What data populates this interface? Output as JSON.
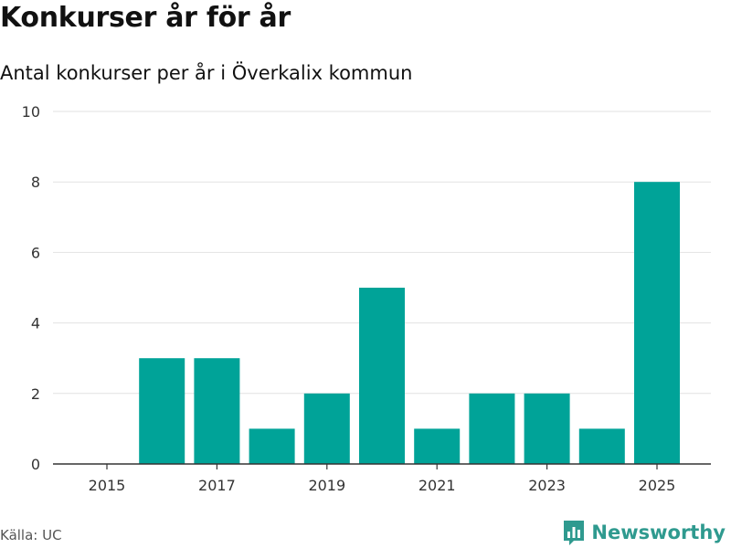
{
  "title": "Konkurser år för år",
  "subtitle": "Antal konkurser per år i Överkalix kommun",
  "source": "Källa: UC",
  "brand": "Newsworthy",
  "colors": {
    "bar": "#00a398",
    "grid": "#e2e2e2",
    "axis": "#333333",
    "brand": "#2f9a8f"
  },
  "chart_data": {
    "type": "bar",
    "title": "Konkurser år för år",
    "subtitle": "Antal konkurser per år i Överkalix kommun",
    "xlabel": "",
    "ylabel": "",
    "categories": [
      2015,
      2016,
      2017,
      2018,
      2019,
      2020,
      2021,
      2022,
      2023,
      2024,
      2025
    ],
    "values": [
      0,
      3,
      3,
      1,
      2,
      5,
      1,
      2,
      2,
      1,
      8
    ],
    "ylim": [
      0,
      10
    ],
    "yticks": [
      0,
      2,
      4,
      6,
      8,
      10
    ],
    "xtick_labels": [
      "2015",
      "2017",
      "2019",
      "2021",
      "2023",
      "2025"
    ],
    "grid": true,
    "legend": "none"
  }
}
